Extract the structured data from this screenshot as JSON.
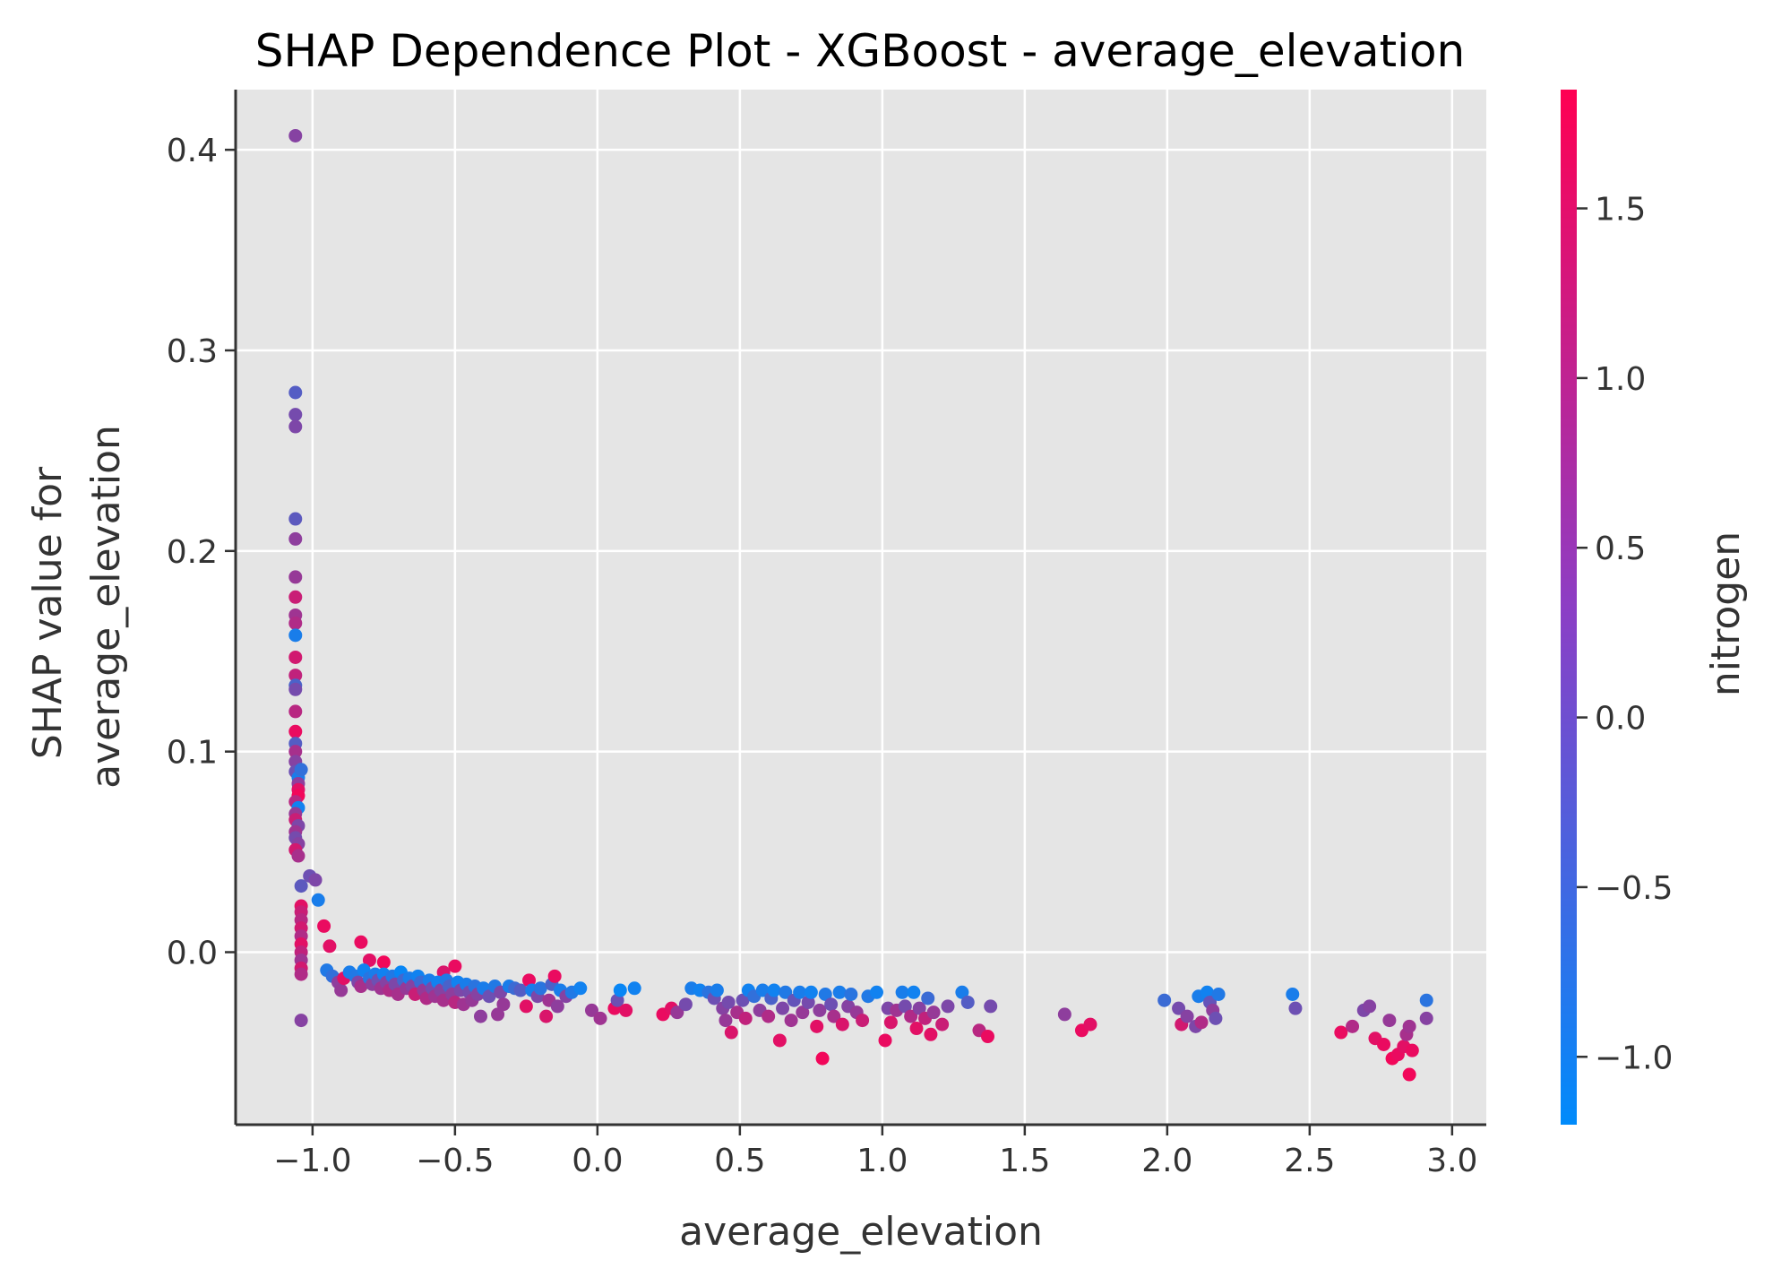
{
  "chart_data": {
    "type": "scatter",
    "title": "SHAP Dependence Plot - XGBoost - average_elevation",
    "xlabel": "average_elevation",
    "ylabel_lines": [
      "SHAP value for",
      "average_elevation"
    ],
    "xlim": [
      -1.27,
      3.12
    ],
    "ylim": [
      -0.086,
      0.43
    ],
    "xticks": [
      -1.0,
      -0.5,
      0.0,
      0.5,
      1.0,
      1.5,
      2.0,
      2.5,
      3.0
    ],
    "xtick_labels": [
      "−1.0",
      "−0.5",
      "0.0",
      "0.5",
      "1.0",
      "1.5",
      "2.0",
      "2.5",
      "3.0"
    ],
    "yticks": [
      0.0,
      0.1,
      0.2,
      0.3,
      0.4
    ],
    "ytick_labels": [
      "0.0",
      "0.1",
      "0.2",
      "0.3",
      "0.4"
    ],
    "grid": true,
    "colorbar": {
      "label": "nitrogen",
      "range": [
        -1.2,
        1.85
      ],
      "ticks": [
        -1.0,
        -0.5,
        0.0,
        0.5,
        1.0,
        1.5
      ],
      "tick_labels": [
        "−1.0",
        "−0.5",
        "0.0",
        "0.5",
        "1.0",
        "1.5"
      ],
      "colormap": [
        "#008bfb",
        "#ff0052"
      ]
    },
    "colors": {
      "background": "#e5e5e5",
      "grid": "#ffffff",
      "axis": "#333333"
    },
    "points": [
      [
        -1.06,
        0.407,
        0.4
      ],
      [
        -1.06,
        0.279,
        -0.2
      ],
      [
        -1.06,
        0.268,
        0.2
      ],
      [
        -1.06,
        0.262,
        0.3
      ],
      [
        -1.06,
        0.216,
        -0.1
      ],
      [
        -1.06,
        0.206,
        0.5
      ],
      [
        -1.06,
        0.187,
        0.6
      ],
      [
        -1.06,
        0.177,
        1.2
      ],
      [
        -1.06,
        0.168,
        0.7
      ],
      [
        -1.06,
        0.164,
        0.9
      ],
      [
        -1.06,
        0.158,
        -0.9
      ],
      [
        -1.06,
        0.147,
        1.3
      ],
      [
        -1.06,
        0.138,
        1.1
      ],
      [
        -1.06,
        0.133,
        -0.3
      ],
      [
        -1.06,
        0.131,
        0.2
      ],
      [
        -1.06,
        0.12,
        1.0
      ],
      [
        -1.06,
        0.11,
        1.6
      ],
      [
        -1.06,
        0.104,
        -0.2
      ],
      [
        -1.06,
        0.1,
        0.8
      ],
      [
        -1.06,
        0.095,
        0.4
      ],
      [
        -1.06,
        0.09,
        0.1
      ],
      [
        -1.05,
        0.087,
        -0.9
      ],
      [
        -1.05,
        0.084,
        0.5
      ],
      [
        -1.05,
        0.081,
        1.5
      ],
      [
        -1.05,
        0.078,
        1.7
      ],
      [
        -1.06,
        0.075,
        1.0
      ],
      [
        -1.05,
        0.072,
        -1.0
      ],
      [
        -1.06,
        0.069,
        0.6
      ],
      [
        -1.06,
        0.066,
        1.2
      ],
      [
        -1.05,
        0.063,
        0.3
      ],
      [
        -1.06,
        0.06,
        0.7
      ],
      [
        -1.06,
        0.057,
        0.2
      ],
      [
        -1.05,
        0.054,
        0.4
      ],
      [
        -1.06,
        0.051,
        1.3
      ],
      [
        -1.05,
        0.048,
        0.8
      ],
      [
        -1.04,
        0.091,
        -0.6
      ],
      [
        -1.04,
        0.033,
        -0.1
      ],
      [
        -1.01,
        0.038,
        0.1
      ],
      [
        -0.99,
        0.036,
        0.3
      ],
      [
        -0.98,
        0.026,
        -0.9
      ],
      [
        -1.04,
        0.023,
        1.5
      ],
      [
        -1.04,
        0.02,
        1.2
      ],
      [
        -1.04,
        0.016,
        1.0
      ],
      [
        -1.04,
        0.012,
        1.3
      ],
      [
        -1.04,
        0.008,
        0.9
      ],
      [
        -1.04,
        0.004,
        1.5
      ],
      [
        -1.04,
        0.0,
        1.1
      ],
      [
        -1.04,
        -0.004,
        0.7
      ],
      [
        -1.04,
        -0.008,
        1.3
      ],
      [
        -1.04,
        -0.011,
        0.9
      ],
      [
        -1.04,
        -0.034,
        0.4
      ],
      [
        -0.96,
        0.013,
        1.6
      ],
      [
        -0.94,
        0.003,
        1.5
      ],
      [
        -0.83,
        0.005,
        1.6
      ],
      [
        -0.8,
        -0.004,
        1.5
      ],
      [
        -0.75,
        -0.005,
        1.7
      ],
      [
        -0.5,
        -0.007,
        1.6
      ],
      [
        -0.54,
        -0.01,
        1.4
      ],
      [
        -0.95,
        -0.009,
        -0.8
      ],
      [
        -0.93,
        -0.012,
        -0.6
      ],
      [
        -0.91,
        -0.015,
        0.5
      ],
      [
        -0.9,
        -0.019,
        0.6
      ],
      [
        -0.89,
        -0.013,
        1.5
      ],
      [
        -0.87,
        -0.01,
        -0.9
      ],
      [
        -0.85,
        -0.012,
        -0.8
      ],
      [
        -0.84,
        -0.015,
        0.3
      ],
      [
        -0.83,
        -0.017,
        0.8
      ],
      [
        -0.82,
        -0.009,
        -1.0
      ],
      [
        -0.8,
        -0.013,
        -0.7
      ],
      [
        -0.79,
        -0.016,
        0.5
      ],
      [
        -0.78,
        -0.011,
        -0.9
      ],
      [
        -0.77,
        -0.014,
        0.1
      ],
      [
        -0.76,
        -0.018,
        0.7
      ],
      [
        -0.75,
        -0.011,
        -1.0
      ],
      [
        -0.74,
        -0.015,
        0.4
      ],
      [
        -0.73,
        -0.019,
        0.9
      ],
      [
        -0.72,
        -0.012,
        -0.8
      ],
      [
        -0.71,
        -0.016,
        0.3
      ],
      [
        -0.7,
        -0.021,
        0.8
      ],
      [
        -0.69,
        -0.01,
        -1.1
      ],
      [
        -0.68,
        -0.014,
        -0.4
      ],
      [
        -0.67,
        -0.018,
        0.6
      ],
      [
        -0.66,
        -0.013,
        -0.9
      ],
      [
        -0.65,
        -0.017,
        0.4
      ],
      [
        -0.64,
        -0.021,
        1.2
      ],
      [
        -0.63,
        -0.012,
        -1.0
      ],
      [
        -0.62,
        -0.015,
        -0.5
      ],
      [
        -0.61,
        -0.019,
        0.6
      ],
      [
        -0.6,
        -0.023,
        0.9
      ],
      [
        -0.59,
        -0.014,
        -0.9
      ],
      [
        -0.58,
        -0.018,
        0.2
      ],
      [
        -0.57,
        -0.022,
        0.7
      ],
      [
        -0.56,
        -0.015,
        -1.0
      ],
      [
        -0.55,
        -0.019,
        0.4
      ],
      [
        -0.54,
        -0.024,
        0.8
      ],
      [
        -0.53,
        -0.014,
        -0.8
      ],
      [
        -0.52,
        -0.017,
        -0.3
      ],
      [
        -0.51,
        -0.021,
        0.5
      ],
      [
        -0.5,
        -0.025,
        1.0
      ],
      [
        -0.49,
        -0.015,
        -1.0
      ],
      [
        -0.48,
        -0.019,
        0.3
      ],
      [
        -0.47,
        -0.026,
        0.7
      ],
      [
        -0.46,
        -0.016,
        -0.9
      ],
      [
        -0.45,
        -0.02,
        0.2
      ],
      [
        -0.44,
        -0.024,
        0.6
      ],
      [
        -0.43,
        -0.017,
        -0.7
      ],
      [
        -0.42,
        -0.021,
        0.4
      ],
      [
        -0.41,
        -0.032,
        0.5
      ],
      [
        -0.4,
        -0.018,
        -0.9
      ],
      [
        -0.38,
        -0.022,
        0.1
      ],
      [
        -0.36,
        -0.017,
        -0.8
      ],
      [
        -0.35,
        -0.031,
        0.6
      ],
      [
        -0.34,
        -0.02,
        0.3
      ],
      [
        -0.33,
        -0.026,
        0.6
      ],
      [
        -0.31,
        -0.017,
        -0.9
      ],
      [
        -0.29,
        -0.018,
        -0.5
      ],
      [
        -0.27,
        -0.019,
        -0.2
      ],
      [
        -0.25,
        -0.027,
        1.5
      ],
      [
        -0.24,
        -0.014,
        1.6
      ],
      [
        -0.23,
        -0.019,
        -0.9
      ],
      [
        -0.21,
        -0.022,
        0.3
      ],
      [
        -0.2,
        -0.018,
        -0.7
      ],
      [
        -0.18,
        -0.032,
        1.4
      ],
      [
        -0.17,
        -0.024,
        0.7
      ],
      [
        -0.16,
        -0.016,
        -0.3
      ],
      [
        -0.15,
        -0.012,
        1.6
      ],
      [
        -0.14,
        -0.027,
        0.5
      ],
      [
        -0.13,
        -0.019,
        -0.9
      ],
      [
        -0.11,
        -0.022,
        0.4
      ],
      [
        -0.09,
        -0.02,
        -0.8
      ],
      [
        -0.06,
        -0.018,
        -1.0
      ],
      [
        -0.02,
        -0.029,
        0.6
      ],
      [
        0.01,
        -0.033,
        0.7
      ],
      [
        0.06,
        -0.028,
        1.6
      ],
      [
        0.07,
        -0.024,
        0.1
      ],
      [
        0.08,
        -0.019,
        -1.1
      ],
      [
        0.1,
        -0.029,
        1.5
      ],
      [
        0.13,
        -0.018,
        -1.0
      ],
      [
        0.23,
        -0.031,
        1.6
      ],
      [
        0.26,
        -0.028,
        1.5
      ],
      [
        0.28,
        -0.03,
        0.6
      ],
      [
        0.31,
        -0.026,
        0.2
      ],
      [
        0.33,
        -0.018,
        -0.9
      ],
      [
        0.36,
        -0.019,
        -1.0
      ],
      [
        0.39,
        -0.02,
        -0.7
      ],
      [
        0.41,
        -0.023,
        0.1
      ],
      [
        0.42,
        -0.019,
        -0.9
      ],
      [
        0.44,
        -0.028,
        0.4
      ],
      [
        0.45,
        -0.034,
        0.6
      ],
      [
        0.46,
        -0.025,
        0.2
      ],
      [
        0.47,
        -0.04,
        1.4
      ],
      [
        0.49,
        -0.03,
        0.8
      ],
      [
        0.51,
        -0.024,
        0.1
      ],
      [
        0.52,
        -0.033,
        1.1
      ],
      [
        0.53,
        -0.019,
        -1.0
      ],
      [
        0.55,
        -0.022,
        -0.6
      ],
      [
        0.57,
        -0.029,
        0.5
      ],
      [
        0.58,
        -0.019,
        -0.9
      ],
      [
        0.6,
        -0.032,
        0.9
      ],
      [
        0.61,
        -0.023,
        -0.3
      ],
      [
        0.62,
        -0.019,
        -1.0
      ],
      [
        0.64,
        -0.044,
        1.5
      ],
      [
        0.65,
        -0.028,
        0.3
      ],
      [
        0.66,
        -0.02,
        -0.8
      ],
      [
        0.68,
        -0.034,
        0.7
      ],
      [
        0.69,
        -0.024,
        0.0
      ],
      [
        0.71,
        -0.02,
        -0.9
      ],
      [
        0.72,
        -0.03,
        0.6
      ],
      [
        0.74,
        -0.025,
        0.2
      ],
      [
        0.75,
        -0.02,
        -1.0
      ],
      [
        0.77,
        -0.037,
        1.5
      ],
      [
        0.78,
        -0.029,
        0.5
      ],
      [
        0.79,
        -0.053,
        1.7
      ],
      [
        0.8,
        -0.021,
        -0.8
      ],
      [
        0.82,
        -0.026,
        0.1
      ],
      [
        0.83,
        -0.032,
        0.8
      ],
      [
        0.85,
        -0.02,
        -0.9
      ],
      [
        0.86,
        -0.036,
        1.4
      ],
      [
        0.88,
        -0.027,
        0.4
      ],
      [
        0.89,
        -0.021,
        -0.7
      ],
      [
        0.91,
        -0.03,
        0.6
      ],
      [
        0.93,
        -0.034,
        1.2
      ],
      [
        0.95,
        -0.022,
        -0.8
      ],
      [
        0.98,
        -0.02,
        -1.0
      ],
      [
        1.01,
        -0.044,
        1.6
      ],
      [
        1.02,
        -0.028,
        0.3
      ],
      [
        1.03,
        -0.035,
        1.4
      ],
      [
        1.05,
        -0.029,
        0.7
      ],
      [
        1.07,
        -0.02,
        -0.9
      ],
      [
        1.08,
        -0.027,
        0.2
      ],
      [
        1.1,
        -0.032,
        0.9
      ],
      [
        1.11,
        -0.02,
        -1.0
      ],
      [
        1.12,
        -0.038,
        1.5
      ],
      [
        1.13,
        -0.028,
        0.4
      ],
      [
        1.15,
        -0.033,
        1.1
      ],
      [
        1.16,
        -0.023,
        -0.5
      ],
      [
        1.17,
        -0.041,
        1.5
      ],
      [
        1.18,
        -0.03,
        0.6
      ],
      [
        1.21,
        -0.036,
        1.2
      ],
      [
        1.23,
        -0.027,
        0.3
      ],
      [
        1.28,
        -0.02,
        -0.9
      ],
      [
        1.3,
        -0.025,
        -0.2
      ],
      [
        1.34,
        -0.039,
        1.0
      ],
      [
        1.37,
        -0.042,
        1.6
      ],
      [
        1.38,
        -0.027,
        0.2
      ],
      [
        1.64,
        -0.031,
        0.5
      ],
      [
        1.7,
        -0.039,
        1.6
      ],
      [
        1.73,
        -0.036,
        1.5
      ],
      [
        1.99,
        -0.024,
        -0.5
      ],
      [
        2.04,
        -0.028,
        0.2
      ],
      [
        2.05,
        -0.036,
        1.3
      ],
      [
        2.07,
        -0.032,
        0.4
      ],
      [
        2.1,
        -0.037,
        0.3
      ],
      [
        2.11,
        -0.022,
        -0.9
      ],
      [
        2.12,
        -0.035,
        0.9
      ],
      [
        2.14,
        -0.02,
        -1.0
      ],
      [
        2.15,
        -0.025,
        0.0
      ],
      [
        2.16,
        -0.029,
        0.5
      ],
      [
        2.17,
        -0.033,
        0.1
      ],
      [
        2.18,
        -0.021,
        -0.8
      ],
      [
        2.44,
        -0.021,
        -0.9
      ],
      [
        2.45,
        -0.028,
        0.1
      ],
      [
        2.61,
        -0.04,
        1.6
      ],
      [
        2.65,
        -0.037,
        0.9
      ],
      [
        2.69,
        -0.029,
        0.3
      ],
      [
        2.71,
        -0.027,
        0.4
      ],
      [
        2.73,
        -0.043,
        1.5
      ],
      [
        2.76,
        -0.046,
        1.6
      ],
      [
        2.78,
        -0.034,
        0.6
      ],
      [
        2.79,
        -0.053,
        1.7
      ],
      [
        2.81,
        -0.051,
        1.6
      ],
      [
        2.83,
        -0.047,
        1.5
      ],
      [
        2.84,
        -0.041,
        0.8
      ],
      [
        2.85,
        -0.037,
        0.7
      ],
      [
        2.85,
        -0.061,
        1.7
      ],
      [
        2.86,
        -0.049,
        1.6
      ],
      [
        2.91,
        -0.033,
        0.4
      ],
      [
        2.91,
        -0.024,
        -0.7
      ]
    ]
  }
}
